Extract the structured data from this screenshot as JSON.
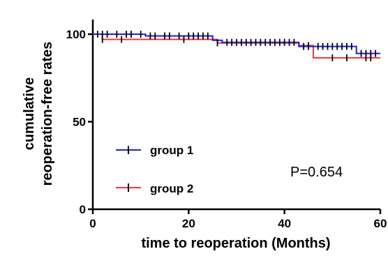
{
  "chart_data": {
    "type": "line",
    "title": "",
    "xlabel": "time to reoperation (Months)",
    "ylabel_line1": "cumulative",
    "ylabel_line2": "reoperation-free rates",
    "xlim": [
      0,
      60
    ],
    "ylim": [
      0,
      100
    ],
    "xticks": [
      "0",
      "20",
      "40",
      "60"
    ],
    "yticks": [
      "0",
      "50",
      "100"
    ],
    "annotation": "P=0.654",
    "legend_position": "bottom-left",
    "grid": false,
    "series": [
      {
        "name": "group 1",
        "color": "#1f1fd6",
        "step": [
          [
            0,
            100
          ],
          [
            11,
            100
          ],
          [
            11,
            99
          ],
          [
            25,
            99
          ],
          [
            25,
            96.5
          ],
          [
            27,
            96.5
          ],
          [
            27,
            95.3
          ],
          [
            43,
            95.3
          ],
          [
            43,
            93
          ],
          [
            55,
            93
          ],
          [
            55,
            89
          ],
          [
            60,
            89
          ]
        ],
        "censored_x": [
          1,
          2,
          3,
          5,
          7,
          8,
          10,
          12,
          13,
          15,
          16,
          18,
          20,
          21,
          22,
          23,
          24,
          28,
          29,
          30,
          31,
          32,
          33,
          34,
          35,
          36,
          37,
          38,
          39,
          40,
          41,
          42,
          44,
          45,
          47,
          48,
          49,
          50,
          51,
          52,
          53,
          54,
          56,
          57,
          58,
          59
        ]
      },
      {
        "name": "group 2",
        "color": "#e8373a",
        "step": [
          [
            0,
            100
          ],
          [
            2,
            100
          ],
          [
            2,
            97
          ],
          [
            26,
            97
          ],
          [
            26,
            95
          ],
          [
            43,
            95
          ],
          [
            43,
            93.5
          ],
          [
            46,
            93.5
          ],
          [
            46,
            86.5
          ],
          [
            60,
            86.5
          ]
        ],
        "censored_x": [
          2,
          6,
          19,
          26,
          45,
          50,
          53,
          57,
          58
        ]
      }
    ]
  }
}
